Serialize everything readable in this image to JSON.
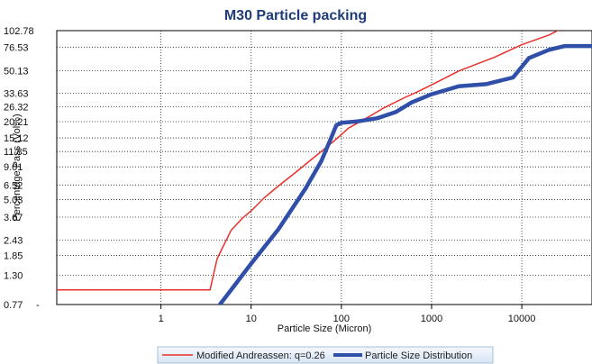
{
  "chart_data": {
    "type": "line",
    "title": "M30 Particle packing",
    "xlabel": "Particle Size (Micron)",
    "ylabel": "Percentage Pass (Vol%)",
    "x_scale": "log",
    "y_scale": "log",
    "xlim": [
      0.07,
      60000
    ],
    "ylim": [
      0.77,
      102.78
    ],
    "x_tick_labels": [
      "1",
      "10",
      "100",
      "1000",
      "10000"
    ],
    "x_tick_values": [
      1,
      10,
      100,
      1000,
      10000
    ],
    "y_tick_labels": [
      "102.78",
      "76.53",
      "50.13",
      "33.63",
      "26.32",
      "20.21",
      "15.12",
      "11.85",
      "9.01",
      "6.52",
      "5.03",
      "3.67",
      "2.43",
      "1.85",
      "1.30",
      "0.77"
    ],
    "y_tick_values": [
      102.78,
      76.53,
      50.13,
      33.63,
      26.32,
      20.21,
      15.12,
      11.85,
      9.01,
      6.52,
      5.03,
      3.67,
      2.43,
      1.85,
      1.3,
      0.77
    ],
    "grid": true,
    "legend_position": "bottom",
    "series": [
      {
        "name": "Modified Andreassen:  q=0.26",
        "color": "#e8302a",
        "points": [
          [
            0.07,
            1.0
          ],
          [
            3.5,
            1.0
          ],
          [
            4.2,
            1.75
          ],
          [
            6,
            2.9
          ],
          [
            8,
            3.6
          ],
          [
            10,
            4.1
          ],
          [
            14,
            5.2
          ],
          [
            20,
            6.4
          ],
          [
            30,
            8.0
          ],
          [
            50,
            10.7
          ],
          [
            80,
            14.0
          ],
          [
            120,
            18.0
          ],
          [
            200,
            22.0
          ],
          [
            300,
            26.0
          ],
          [
            500,
            31.0
          ],
          [
            700,
            34.5
          ],
          [
            1000,
            39.0
          ],
          [
            2000,
            50.0
          ],
          [
            5000,
            64.0
          ],
          [
            10000,
            80.0
          ],
          [
            20000,
            95.0
          ],
          [
            25000,
            102.78
          ]
        ]
      },
      {
        "name": "Particle Size Distribution",
        "color": "#2f4fa8",
        "points": [
          [
            4.5,
            0.77
          ],
          [
            6,
            1.0
          ],
          [
            10,
            1.6
          ],
          [
            20,
            2.95
          ],
          [
            40,
            6.1
          ],
          [
            60,
            10.0
          ],
          [
            75,
            14.5
          ],
          [
            88,
            19.0
          ],
          [
            100,
            19.8
          ],
          [
            150,
            20.3
          ],
          [
            250,
            21.5
          ],
          [
            400,
            24.0
          ],
          [
            600,
            28.5
          ],
          [
            1000,
            33.0
          ],
          [
            2000,
            38.0
          ],
          [
            4000,
            39.5
          ],
          [
            8000,
            44.5
          ],
          [
            12000,
            63.0
          ],
          [
            20000,
            73.0
          ],
          [
            30000,
            78.0
          ],
          [
            60000,
            78.0
          ]
        ]
      }
    ]
  }
}
